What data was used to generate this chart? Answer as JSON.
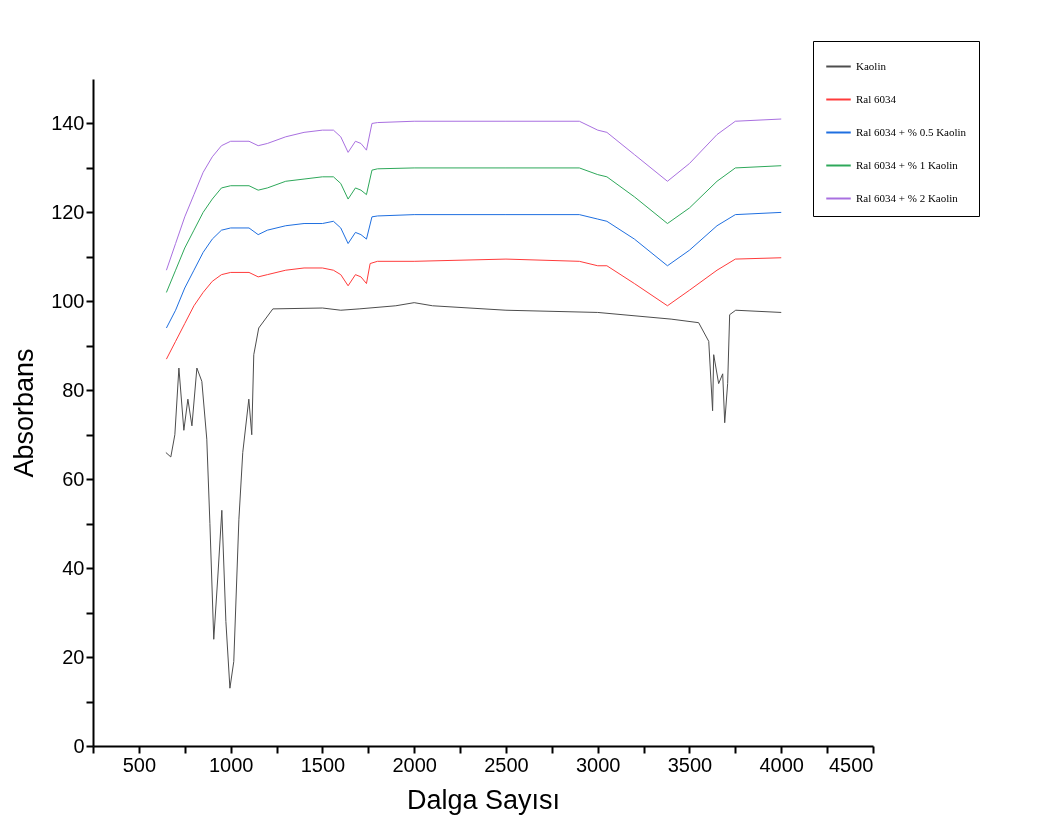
{
  "chart_data": {
    "type": "line",
    "xlabel": "Dalga Sayısı",
    "ylabel": "Absorbans",
    "xlim": [
      250,
      4500
    ],
    "ylim": [
      0,
      150
    ],
    "xticks": [
      {
        "value": 250,
        "label": null
      },
      500,
      {
        "value": 750,
        "label": null
      },
      1000,
      {
        "value": 1250,
        "label": null
      },
      1500,
      {
        "value": 1750,
        "label": null
      },
      2000,
      {
        "value": 2250,
        "label": null
      },
      2500,
      {
        "value": 2750,
        "label": null
      },
      3000,
      {
        "value": 3250,
        "label": null
      },
      3500,
      {
        "value": 3750,
        "label": null
      },
      4000,
      {
        "value": 4250,
        "label": null
      },
      4500
    ],
    "yticks": [
      0,
      {
        "value": 10,
        "label": null
      },
      20,
      {
        "value": 30,
        "label": null
      },
      40,
      {
        "value": 50,
        "label": null
      },
      60,
      {
        "value": 70,
        "label": null
      },
      80,
      {
        "value": 90,
        "label": null
      },
      100,
      {
        "value": 110,
        "label": null
      },
      120,
      {
        "value": 130,
        "label": null
      },
      140
    ],
    "grid": false,
    "legend": "top right",
    "marker": "none",
    "line_style": "solid",
    "series": [
      {
        "name": "Kaolin",
        "color": "#4d4d4d",
        "x": [
          647,
          674,
          696,
          718,
          745,
          767,
          789,
          816,
          843,
          870,
          887,
          908,
          930,
          952,
          974,
          996,
          1017,
          1045,
          1066,
          1099,
          1115,
          1126,
          1153,
          1230,
          1500,
          1600,
          1700,
          1900,
          2000,
          2100,
          2500,
          3000,
          3400,
          3550,
          3605,
          3626,
          3632,
          3659,
          3681,
          3692,
          3708,
          3719,
          3752,
          4000
        ],
        "values": [
          66,
          65,
          70,
          85,
          71,
          78,
          72,
          85,
          82,
          69,
          50,
          24,
          38,
          53,
          28,
          13,
          19,
          51,
          66,
          78,
          70,
          88,
          94,
          98.3,
          98.5,
          98,
          98.3,
          99,
          99.7,
          99,
          98,
          97.5,
          96,
          95.2,
          91,
          75.4,
          88,
          81.5,
          83.7,
          72.7,
          81.5,
          97,
          98,
          97.5
        ]
      },
      {
        "name": "Ral 6034",
        "color": "#ff3b3b",
        "x": [
          650,
          700,
          750,
          800,
          850,
          900,
          950,
          1000,
          1100,
          1150,
          1200,
          1300,
          1400,
          1500,
          1560,
          1600,
          1640,
          1680,
          1710,
          1740,
          1760,
          1800,
          2000,
          2500,
          2900,
          3000,
          3050,
          3200,
          3380,
          3500,
          3650,
          3750,
          4000
        ],
        "values": [
          87,
          91,
          95,
          99,
          102,
          104.5,
          106,
          106.5,
          106.5,
          105.5,
          106,
          107,
          107.5,
          107.5,
          107,
          106,
          103.5,
          106,
          105.5,
          104,
          108.5,
          109,
          109,
          109.5,
          109,
          108,
          108,
          104,
          99,
          102.5,
          107,
          109.5,
          109.8
        ]
      },
      {
        "name": "Ral 6034 + % 0.5 Kaolin",
        "color": "#1f6fe0",
        "x": [
          650,
          700,
          750,
          800,
          850,
          900,
          950,
          1000,
          1100,
          1150,
          1200,
          1300,
          1400,
          1500,
          1560,
          1600,
          1640,
          1680,
          1710,
          1740,
          1770,
          1800,
          2000,
          2500,
          2900,
          3000,
          3050,
          3200,
          3380,
          3500,
          3650,
          3750,
          4000
        ],
        "values": [
          94,
          98,
          103,
          107,
          111,
          114,
          116,
          116.5,
          116.5,
          115,
          116,
          117,
          117.5,
          117.5,
          118,
          116.5,
          113,
          115.5,
          115,
          114,
          119,
          119.2,
          119.5,
          119.5,
          119.5,
          118.5,
          118,
          114,
          108,
          111.5,
          117,
          119.5,
          120
        ]
      },
      {
        "name": "Ral 6034 + % 1  Kaolin",
        "color": "#2ea85a",
        "x": [
          650,
          700,
          750,
          800,
          850,
          900,
          950,
          1000,
          1100,
          1150,
          1200,
          1300,
          1400,
          1500,
          1560,
          1600,
          1640,
          1680,
          1710,
          1740,
          1770,
          1800,
          2000,
          2500,
          2900,
          3000,
          3050,
          3200,
          3380,
          3500,
          3650,
          3750,
          4000
        ],
        "values": [
          102,
          107,
          112,
          116,
          120,
          123,
          125.5,
          126,
          126,
          125,
          125.5,
          127,
          127.5,
          128,
          128,
          126.5,
          123,
          125.5,
          125,
          124,
          129.5,
          129.8,
          130,
          130,
          130,
          128.5,
          128,
          123.5,
          117.5,
          121,
          127,
          130,
          130.5
        ]
      },
      {
        "name": "Ral 6034 + % 2 Kaolin",
        "color": "#a970e0",
        "x": [
          650,
          700,
          750,
          800,
          850,
          900,
          950,
          1000,
          1100,
          1150,
          1200,
          1300,
          1400,
          1500,
          1560,
          1600,
          1640,
          1680,
          1710,
          1740,
          1770,
          1800,
          2000,
          2500,
          2900,
          3000,
          3050,
          3200,
          3380,
          3500,
          3650,
          3750,
          4000
        ],
        "values": [
          107,
          113,
          119,
          124,
          129,
          132.5,
          135,
          136,
          136,
          135,
          135.5,
          137,
          138,
          138.5,
          138.5,
          137,
          133.5,
          136,
          135.5,
          134,
          140,
          140.2,
          140.5,
          140.5,
          140.5,
          138.5,
          138,
          133,
          127,
          131,
          137.5,
          140.5,
          141
        ]
      }
    ]
  }
}
